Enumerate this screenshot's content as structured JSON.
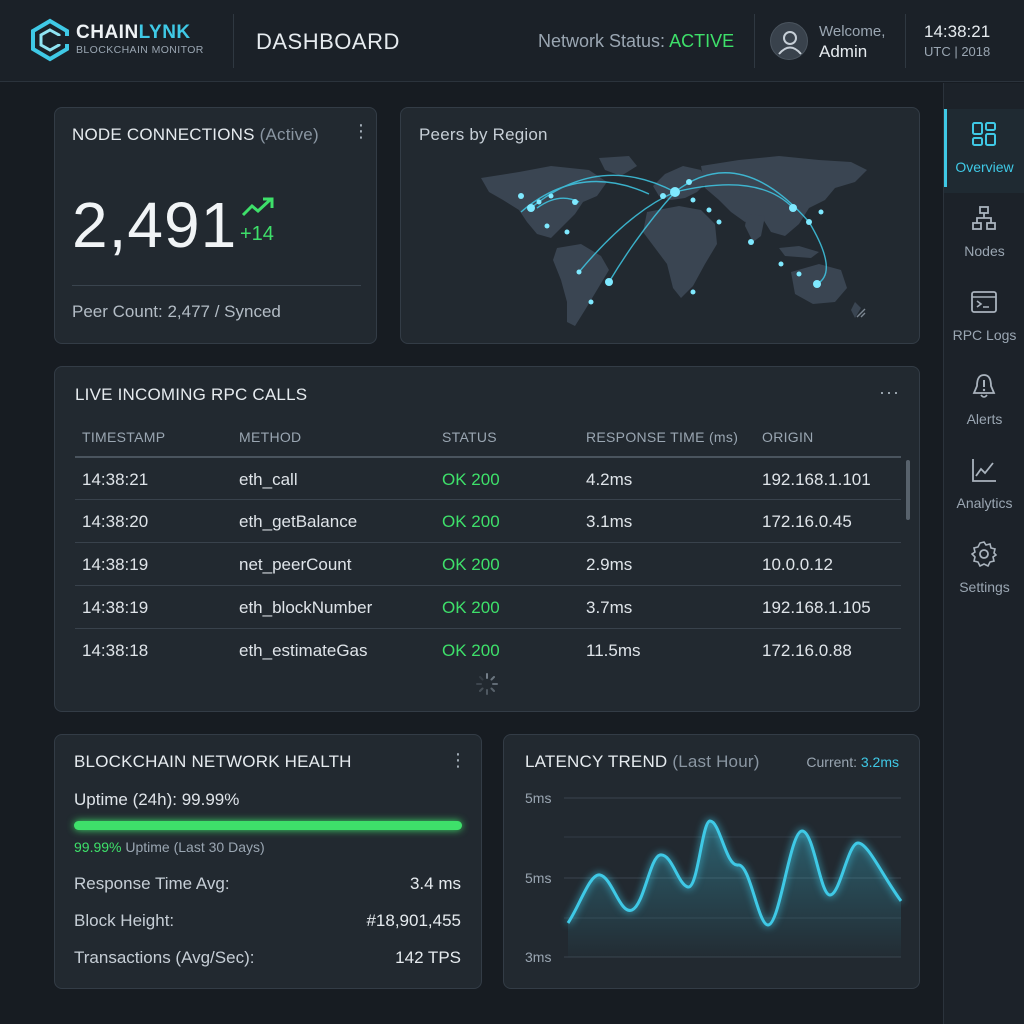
{
  "brand": {
    "name_part1": "CHAIN",
    "name_part2": "LYNK",
    "tagline": "BLOCKCHAIN MONITOR"
  },
  "header": {
    "page_title": "DASHBOARD",
    "network_status_label": "Network Status:",
    "network_status_value": "ACTIVE",
    "welcome_label": "Welcome,",
    "user_name": "Admin",
    "time": "14:38:21",
    "time_zone": "UTC | 2018"
  },
  "sidebar": {
    "items": [
      {
        "label": "Overview",
        "icon": "grid-icon",
        "active": true
      },
      {
        "label": "Nodes",
        "icon": "hierarchy-icon",
        "active": false
      },
      {
        "label": "RPC Logs",
        "icon": "terminal-icon",
        "active": false
      },
      {
        "label": "Alerts",
        "icon": "alert-icon",
        "active": false
      },
      {
        "label": "Analytics",
        "icon": "line-chart-icon",
        "active": false
      },
      {
        "label": "Settings",
        "icon": "gear-icon",
        "active": false
      }
    ]
  },
  "node_connections": {
    "title": "NODE CONNECTIONS",
    "title_suffix": "(Active)",
    "count": "2,491",
    "delta": "+14",
    "peer_count_text": "Peer Count: 2,477 / Synced"
  },
  "peers_map": {
    "title": "Peers by Region"
  },
  "rpc": {
    "title": "LIVE INCOMING RPC CALLS",
    "columns": [
      "TIMESTAMP",
      "METHOD",
      "STATUS",
      "RESPONSE TIME (ms)",
      "ORIGIN"
    ],
    "rows": [
      {
        "time": "14:38:21",
        "method": "eth_call",
        "status": "OK 200",
        "response": "4.2ms",
        "origin": "192.168.1.101"
      },
      {
        "time": "14:38:20",
        "method": "eth_getBalance",
        "status": "OK 200",
        "response": "3.1ms",
        "origin": "172.16.0.45"
      },
      {
        "time": "14:38:19",
        "method": "net_peerCount",
        "status": "OK 200",
        "response": "2.9ms",
        "origin": "10.0.0.12"
      },
      {
        "time": "14:38:19",
        "method": "eth_blockNumber",
        "status": "OK 200",
        "response": "3.7ms",
        "origin": "192.168.1.105"
      },
      {
        "time": "14:38:18",
        "method": "eth_estimateGas",
        "status": "OK 200",
        "response": "11.5ms",
        "origin": "172.16.0.88"
      }
    ]
  },
  "health": {
    "title": "BLOCKCHAIN NETWORK HEALTH",
    "uptime_label": "Uptime (24h): 99.99%",
    "uptime_fraction": 0.9999,
    "uptime_sub_value": "99.99%",
    "uptime_sub_text": "Uptime (Last 30 Days)",
    "stats": [
      {
        "label": "Response Time Avg:",
        "value": "3.4 ms"
      },
      {
        "label": "Block Height:",
        "value": "#18,901,455"
      },
      {
        "label": "Transactions (Avg/Sec):",
        "value": "142 TPS"
      }
    ]
  },
  "latency": {
    "title": "LATENCY TREND",
    "title_suffix": "(Last Hour)",
    "current_label": "Current:",
    "current_value": "3.2ms",
    "y_ticks": [
      "5ms",
      "5ms",
      "3ms"
    ]
  },
  "colors": {
    "accent": "#3fc9e6",
    "ok": "#3ee06a",
    "background": "#171c22",
    "card": "#222930"
  }
}
